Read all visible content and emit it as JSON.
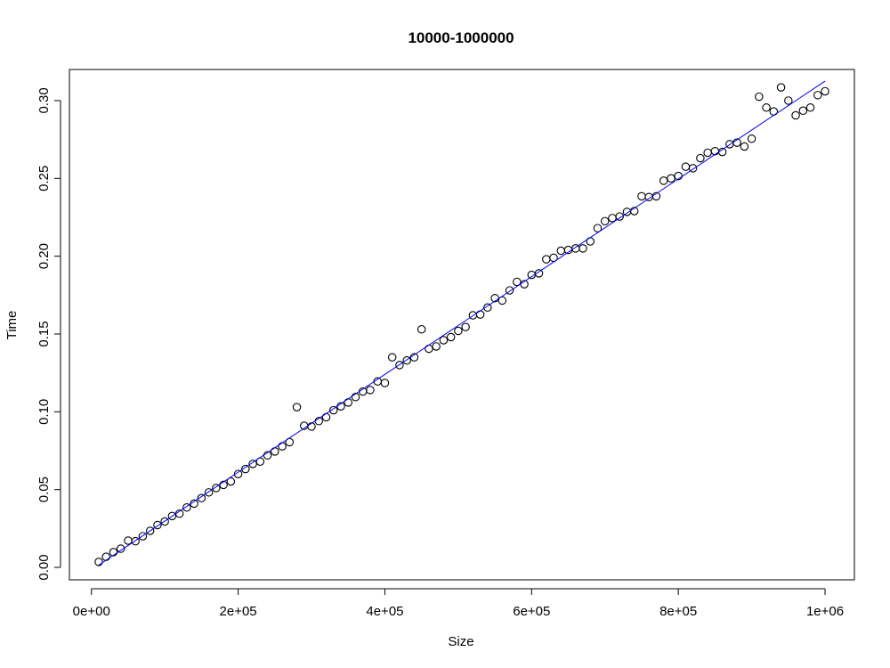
{
  "chart_data": {
    "type": "scatter",
    "title": "10000-1000000",
    "xlabel": "Size",
    "ylabel": "Time",
    "xlim": [
      -30000,
      1040000
    ],
    "ylim": [
      -0.008,
      0.32
    ],
    "x_ticks": [
      {
        "value": 0,
        "label": "0e+00"
      },
      {
        "value": 200000,
        "label": "2e+05"
      },
      {
        "value": 400000,
        "label": "4e+05"
      },
      {
        "value": 600000,
        "label": "6e+05"
      },
      {
        "value": 800000,
        "label": "8e+05"
      },
      {
        "value": 1000000,
        "label": "1e+06"
      }
    ],
    "y_ticks": [
      {
        "value": 0.0,
        "label": "0.00"
      },
      {
        "value": 0.05,
        "label": "0.05"
      },
      {
        "value": 0.1,
        "label": "0.10"
      },
      {
        "value": 0.15,
        "label": "0.15"
      },
      {
        "value": 0.2,
        "label": "0.20"
      },
      {
        "value": 0.25,
        "label": "0.25"
      },
      {
        "value": 0.3,
        "label": "0.30"
      }
    ],
    "grid": false,
    "legend": "none",
    "series": [
      {
        "marker": "open-circle",
        "color": "#000000",
        "x": [
          10000,
          20000,
          30000,
          40000,
          50000,
          60000,
          70000,
          80000,
          90000,
          100000,
          110000,
          120000,
          130000,
          140000,
          150000,
          160000,
          170000,
          180000,
          190000,
          200000,
          210000,
          220000,
          230000,
          240000,
          250000,
          260000,
          270000,
          280000,
          290000,
          300000,
          310000,
          320000,
          330000,
          340000,
          350000,
          360000,
          370000,
          380000,
          390000,
          400000,
          410000,
          420000,
          430000,
          440000,
          450000,
          460000,
          470000,
          480000,
          490000,
          500000,
          510000,
          520000,
          530000,
          540000,
          550000,
          560000,
          570000,
          580000,
          590000,
          600000,
          610000,
          620000,
          630000,
          640000,
          650000,
          660000,
          670000,
          680000,
          690000,
          700000,
          710000,
          720000,
          730000,
          740000,
          750000,
          760000,
          770000,
          780000,
          790000,
          800000,
          810000,
          820000,
          830000,
          840000,
          850000,
          860000,
          870000,
          880000,
          890000,
          900000,
          910000,
          920000,
          930000,
          940000,
          950000,
          960000,
          970000,
          980000,
          990000,
          1000000
        ],
        "y": [
          0.0035,
          0.0068,
          0.0098,
          0.012,
          0.0172,
          0.0168,
          0.02,
          0.0235,
          0.0272,
          0.0295,
          0.033,
          0.0345,
          0.0385,
          0.041,
          0.0445,
          0.0482,
          0.051,
          0.053,
          0.0552,
          0.06,
          0.0632,
          0.0665,
          0.068,
          0.072,
          0.0745,
          0.0778,
          0.0805,
          0.103,
          0.091,
          0.0905,
          0.094,
          0.0965,
          0.101,
          0.1035,
          0.106,
          0.1095,
          0.113,
          0.114,
          0.1195,
          0.1185,
          0.135,
          0.13,
          0.133,
          0.135,
          0.153,
          0.1405,
          0.142,
          0.146,
          0.148,
          0.152,
          0.1545,
          0.162,
          0.1625,
          0.167,
          0.173,
          0.1715,
          0.178,
          0.1835,
          0.182,
          0.188,
          0.189,
          0.198,
          0.199,
          0.2035,
          0.204,
          0.205,
          0.205,
          0.2095,
          0.218,
          0.2225,
          0.2245,
          0.2255,
          0.2285,
          0.229,
          0.2385,
          0.238,
          0.2385,
          0.2485,
          0.25,
          0.2515,
          0.2575,
          0.2565,
          0.263,
          0.2665,
          0.2675,
          0.267,
          0.272,
          0.273,
          0.2705,
          0.2755,
          0.3025,
          0.2955,
          0.293,
          0.3085,
          0.3,
          0.2905,
          0.2935,
          0.2955,
          0.3035,
          0.306
        ]
      },
      {
        "type": "line",
        "color": "#0000ff",
        "x": [
          10000,
          1000000
        ],
        "y": [
          0.0015,
          0.3125
        ]
      }
    ]
  }
}
